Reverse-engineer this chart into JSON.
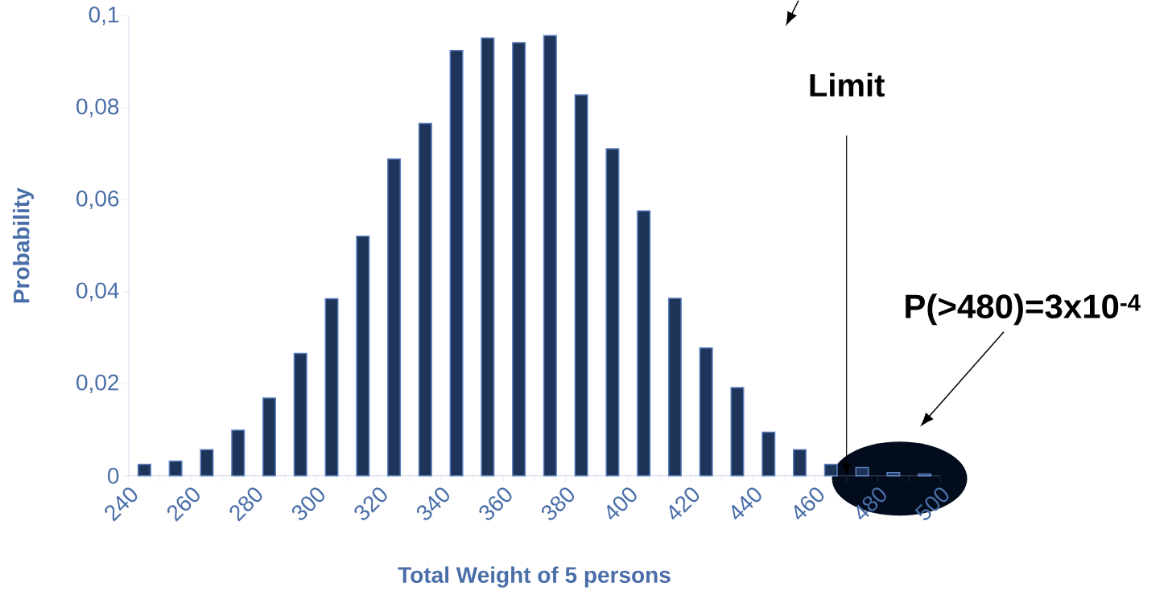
{
  "chart_data": {
    "type": "histogram",
    "xlabel": "Total Weight of 5 persons",
    "ylabel": "Probability",
    "bins": [
      240,
      250,
      260,
      270,
      280,
      290,
      300,
      310,
      320,
      330,
      340,
      350,
      360,
      370,
      380,
      390,
      400,
      410,
      420,
      430,
      440,
      450,
      460,
      470,
      480,
      490,
      500
    ],
    "values": [
      0.0025,
      0.0032,
      0.0057,
      0.0099,
      0.0169,
      0.0266,
      0.0385,
      0.0521,
      0.0689,
      0.0766,
      0.0925,
      0.0952,
      0.0942,
      0.0957,
      0.0828,
      0.0711,
      0.0576,
      0.0386,
      0.0278,
      0.0192,
      0.0095,
      0.0057,
      0.0025,
      0.0018,
      0.0007,
      0.0004
    ],
    "color": "#1e3559",
    "xlim": [
      240,
      500
    ],
    "xticks": [
      240,
      {
        "value": 250,
        "label": null
      },
      260,
      {
        "value": 270,
        "label": null
      },
      280,
      {
        "value": 290,
        "label": null
      },
      300,
      {
        "value": 310,
        "label": null
      },
      320,
      {
        "value": 330,
        "label": null
      },
      340,
      {
        "value": 350,
        "label": null
      },
      360,
      {
        "value": 370,
        "label": null
      },
      380,
      {
        "value": 390,
        "label": null
      },
      400,
      {
        "value": 410,
        "label": null
      },
      420,
      {
        "value": 430,
        "label": null
      },
      440,
      {
        "value": 450,
        "label": null
      },
      460,
      {
        "value": 470,
        "label": null
      },
      480,
      {
        "value": 490,
        "label": null
      },
      500
    ],
    "ylim": [
      0,
      0.1
    ],
    "yticks": [
      0,
      {
        "value": 0.02,
        "label": "0,02"
      },
      {
        "value": 0.04,
        "label": "0,04"
      },
      {
        "value": 0.06,
        "label": "0,06"
      },
      {
        "value": 0.08,
        "label": "0,08"
      },
      {
        "value": 0.1,
        "label": "0,1"
      }
    ],
    "ref_lines": [
      {
        "axis": "x",
        "value": 470,
        "label": "Limit",
        "color": "#000000"
      }
    ],
    "annotations": [
      "P(>480)=3x10$^{-4}$"
    ]
  }
}
